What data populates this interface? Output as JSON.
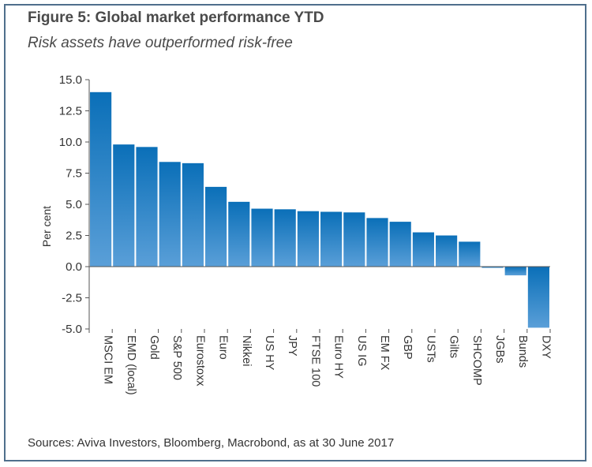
{
  "header": {
    "title": "Figure 5: Global market performance YTD",
    "subtitle": "Risk assets have outperformed risk-free"
  },
  "footer": {
    "source": "Sources: Aviva Investors, Bloomberg, Macrobond, as at 30 June 2017"
  },
  "colors": {
    "bar_top": "#0a6fb8",
    "bar_bottom": "#5a9fd8",
    "frame": "#4f6f8c",
    "axis": "#555555"
  },
  "chart_data": {
    "type": "bar",
    "title": "Figure 5: Global market performance YTD",
    "subtitle": "Risk assets have outperformed risk-free",
    "ylabel": "Per cent",
    "xlabel": "",
    "ylim": [
      -5.0,
      15.0
    ],
    "yticks": [
      "15.0",
      "12.5",
      "10.0",
      "7.5",
      "5.0",
      "2.5",
      "0.0",
      "-2.5",
      "-5.0"
    ],
    "categories": [
      "MSCI EM",
      "EMD (local)",
      "Gold",
      "S&P 500",
      "Eurostoxx",
      "Euro",
      "Nikkei",
      "US HY",
      "JPY",
      "FTSE 100",
      "Euro HY",
      "US IG",
      "EM FX",
      "GBP",
      "USTs",
      "Gilts",
      "SHCOMP",
      "JGBs",
      "Bunds",
      "DXY"
    ],
    "values": [
      14.0,
      9.8,
      9.6,
      8.4,
      8.3,
      6.4,
      5.2,
      4.65,
      4.6,
      4.45,
      4.4,
      4.35,
      3.9,
      3.6,
      2.75,
      2.5,
      2.0,
      -0.1,
      -0.7,
      -4.9
    ],
    "grid": false,
    "legend": "none"
  }
}
